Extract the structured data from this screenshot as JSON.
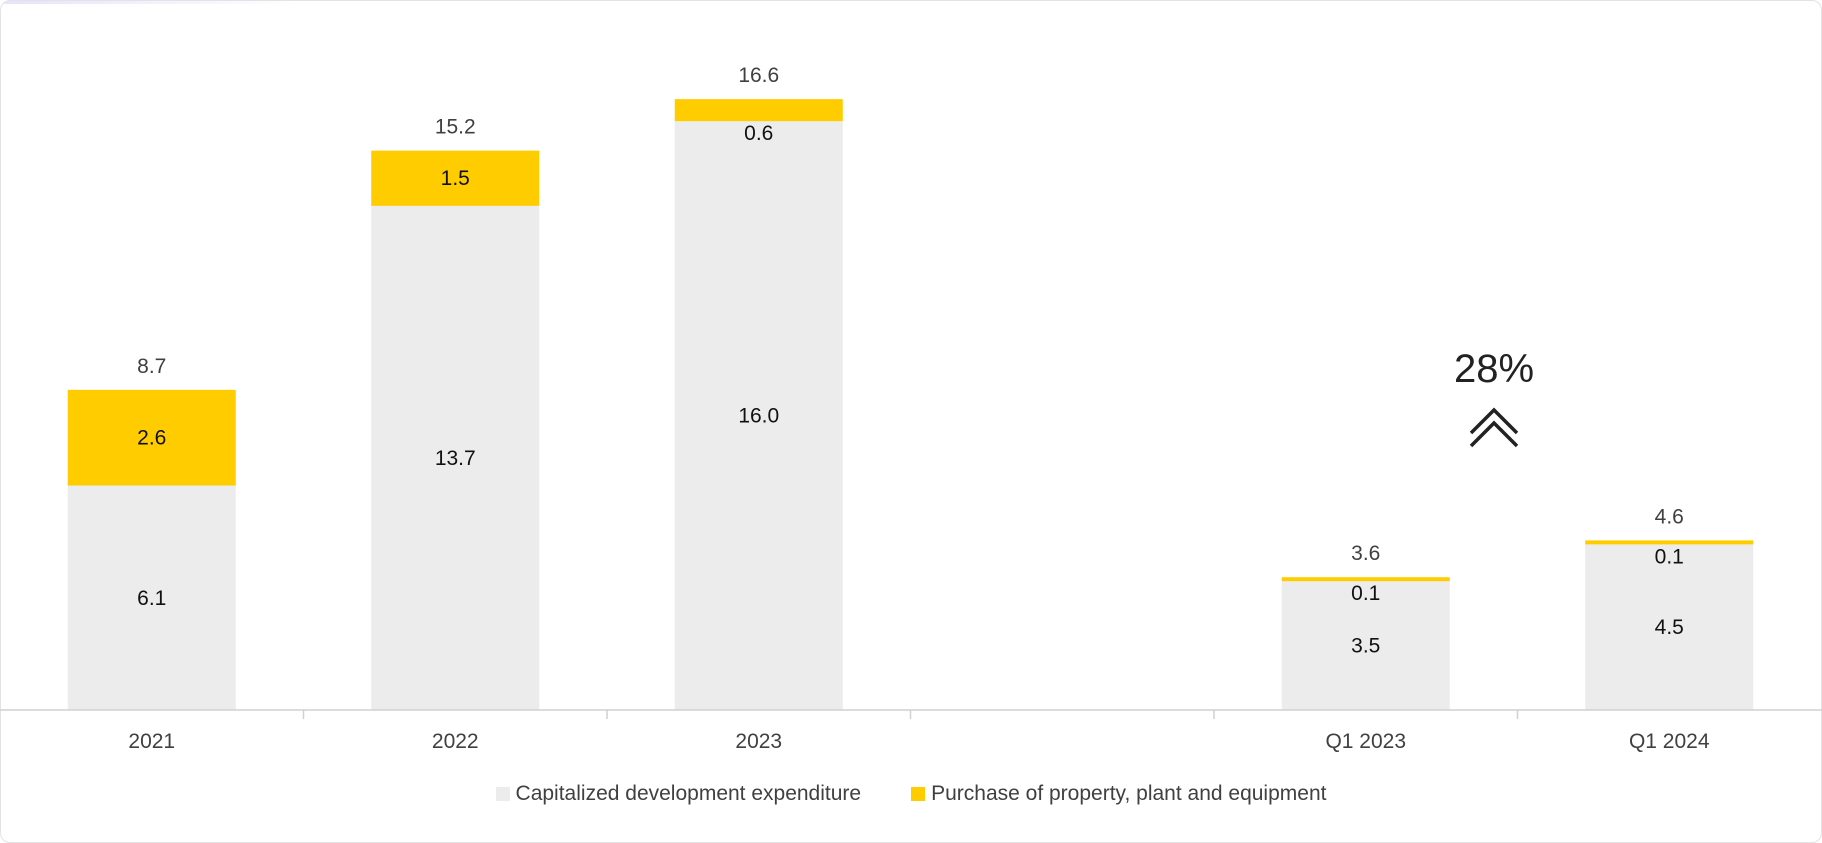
{
  "chart_data": {
    "type": "bar",
    "stacked": true,
    "categories": [
      "2021",
      "2022",
      "2023",
      "",
      "Q1 2023",
      "Q1 2024"
    ],
    "series": [
      {
        "name": "Capitalized development expenditure",
        "color": "#ececec",
        "values": [
          6.1,
          13.7,
          16.0,
          null,
          3.5,
          4.5
        ],
        "labels": [
          "6.1",
          "13.7",
          "16.0",
          "",
          "3.5",
          "4.5"
        ]
      },
      {
        "name": "Purchase of property, plant and equipment",
        "color": "#ffcc00",
        "values": [
          2.6,
          1.5,
          0.6,
          null,
          0.1,
          0.1
        ],
        "labels": [
          "2.6",
          "1.5",
          "0.6",
          "",
          "0.1",
          "0.1"
        ]
      }
    ],
    "totals": [
      "8.7",
      "15.2",
      "16.6",
      "",
      "3.6",
      "4.6"
    ],
    "annotation": {
      "text": "28%",
      "icon": "double-chevron-up-icon"
    },
    "legend_position": "bottom",
    "grid": false,
    "ylim": [
      0,
      17.5
    ]
  }
}
